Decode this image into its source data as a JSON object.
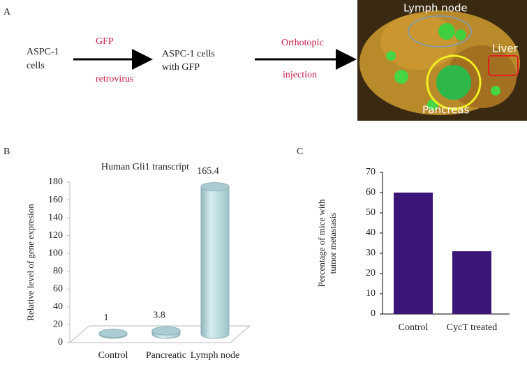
{
  "panel_a": {
    "label": "A",
    "source": [
      "ASPC-1",
      "cells"
    ],
    "step1_top": "GFP",
    "step1_bottom": "retrovirus",
    "middle": [
      "ASPC-1 cells",
      "with GFP"
    ],
    "step2_top": "Orthotopic",
    "step2_bottom": "injection",
    "image_labels": {
      "lymph": "Lymph node",
      "liver": "Liver",
      "pancreas": "Pancreas"
    }
  },
  "chart_data": [
    {
      "type": "bar",
      "panel_label": "B",
      "title": "Human Gli1 transcript",
      "y_label": [
        "Relative level of gene expresion"
      ],
      "categories": [
        "Control",
        "Pancreatic",
        "Lymph node"
      ],
      "values": [
        1,
        3.8,
        165.4
      ],
      "color": "#b8d8dc",
      "three_d": true,
      "ylim": [
        0,
        180
      ],
      "yticks": [
        0,
        20,
        40,
        60,
        80,
        100,
        120,
        140,
        160,
        180
      ]
    },
    {
      "type": "bar",
      "panel_label": "C",
      "y_label": [
        "Percentage of mice with",
        "tumor metastasis"
      ],
      "categories": [
        "Control",
        "CycT treated"
      ],
      "values": [
        60,
        31
      ],
      "color": "#3b1578",
      "three_d": false,
      "ylim": [
        0,
        70
      ],
      "yticks": [
        0,
        10,
        20,
        30,
        40,
        50,
        60,
        70
      ]
    }
  ]
}
